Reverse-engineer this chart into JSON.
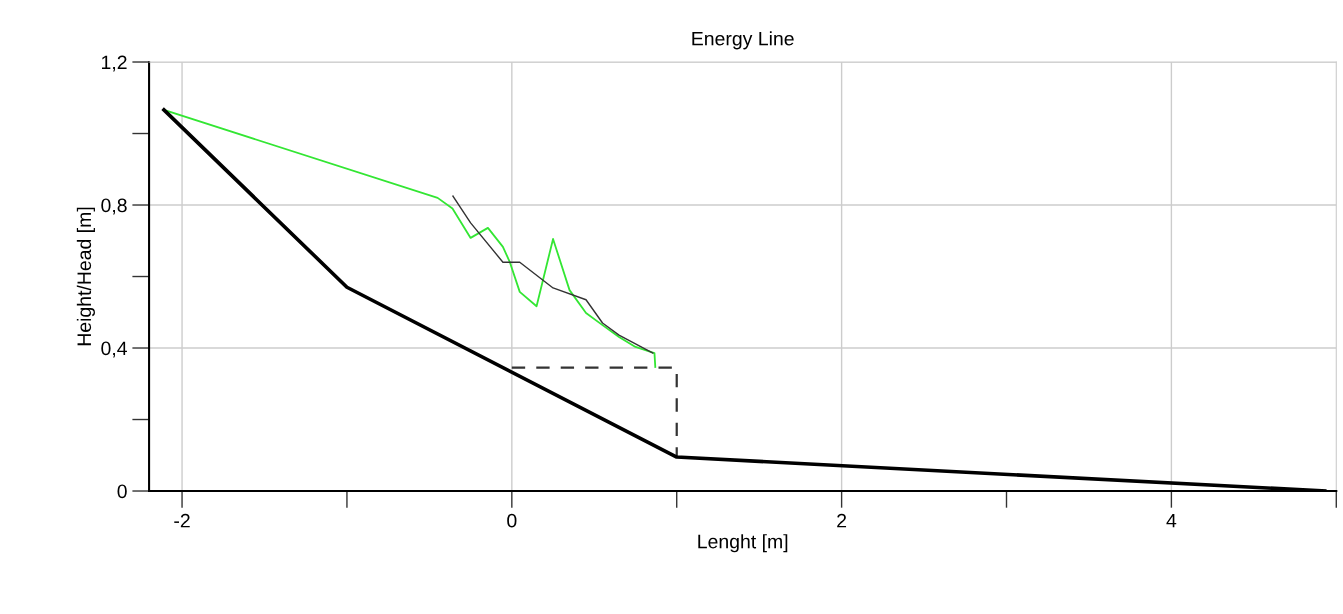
{
  "chart_data": {
    "type": "line",
    "title": "Energy Line",
    "xlabel": "Lenght [m]",
    "ylabel": "Height/Head [m]",
    "series": [
      {
        "color": "#000000",
        "x": [
          -2.11,
          -1.0,
          1.0,
          4.93
        ],
        "values": [
          1.066,
          0.57,
          0.095,
          0.0
        ]
      },
      {
        "color": "#333333",
        "line_style": "dashed",
        "x": [
          0.0,
          1.0,
          1.0
        ],
        "values": [
          0.345,
          0.345,
          0.095
        ]
      },
      {
        "color": "#33e633",
        "x": [
          -2.11,
          -0.45,
          -0.36,
          -0.25,
          -0.145,
          -0.054,
          -0.012,
          0.048,
          0.15,
          0.25,
          0.35,
          0.45,
          0.55,
          0.65,
          0.75,
          0.865,
          0.87
        ],
        "values": [
          1.066,
          0.82,
          0.79,
          0.708,
          0.736,
          0.683,
          0.64,
          0.557,
          0.517,
          0.705,
          0.562,
          0.498,
          0.464,
          0.431,
          0.403,
          0.386,
          0.347
        ]
      },
      {
        "color": "#333333",
        "x": [
          -0.357,
          -0.25,
          -0.054,
          0.048,
          0.25,
          0.45,
          0.55,
          0.65,
          0.855
        ],
        "values": [
          0.825,
          0.75,
          0.64,
          0.64,
          0.568,
          0.535,
          0.47,
          0.436,
          0.386
        ]
      }
    ],
    "xlim": [
      -2.2,
      5
    ],
    "xticks": [
      -2,
      0,
      2,
      4
    ],
    "ylim": [
      0,
      1.2
    ],
    "yticks": [
      0,
      {
        "value": 0.4,
        "label": "0,4"
      },
      {
        "value": 0.8,
        "label": "0,8"
      },
      {
        "value": 1.2,
        "label": "1,2"
      }
    ],
    "grid": true,
    "legend": false,
    "marker": "none"
  }
}
